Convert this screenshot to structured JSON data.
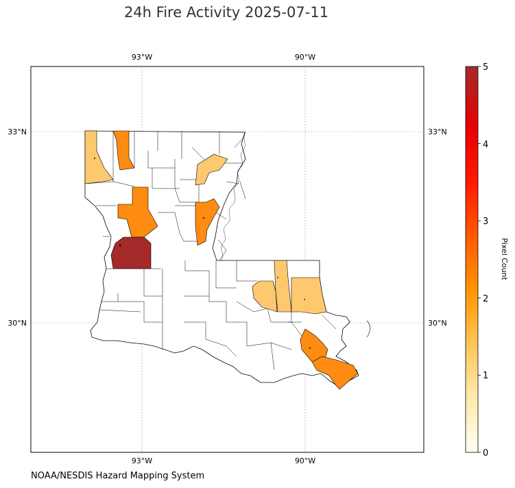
{
  "title": "24h Fire Activity 2025-07-11",
  "credit": "NOAA/NESDIS Hazard Mapping System",
  "map": {
    "region": "Louisiana parishes",
    "gridlines": true,
    "lon_ticks": [
      {
        "value": -93,
        "label": "93°W"
      },
      {
        "value": -90,
        "label": "90°W"
      }
    ],
    "lat_ticks": [
      {
        "value": 33,
        "label": "33°N"
      },
      {
        "value": 30,
        "label": "30°N"
      }
    ],
    "colorbar": {
      "label": "Pixel Count",
      "min": 0,
      "max": 5,
      "ticks": [
        "0",
        "1",
        "2",
        "3",
        "4",
        "5"
      ],
      "colors": [
        "#fffff0",
        "#ffe8a8",
        "#ffc04a",
        "#ff9400",
        "#ff5a00",
        "#ff1a00",
        "#e80000",
        "#a52a2a"
      ]
    },
    "parish_fills": {
      "empty": "#ffffff",
      "count_1": "#fec86f",
      "count_2": "#fe8b12",
      "count_5": "#a52a2a"
    },
    "fire_parishes": [
      {
        "count": 1,
        "color_key": "count_1"
      },
      {
        "count": 2,
        "color_key": "count_2"
      },
      {
        "count": 2,
        "color_key": "count_2"
      },
      {
        "count": 1,
        "color_key": "count_1"
      },
      {
        "count": 2,
        "color_key": "count_2"
      },
      {
        "count": 5,
        "color_key": "count_5"
      },
      {
        "count": 1,
        "color_key": "count_1"
      },
      {
        "count": 1,
        "color_key": "count_1"
      },
      {
        "count": 1,
        "color_key": "count_1"
      },
      {
        "count": 2,
        "color_key": "count_2"
      },
      {
        "count": 2,
        "color_key": "count_2"
      }
    ]
  }
}
